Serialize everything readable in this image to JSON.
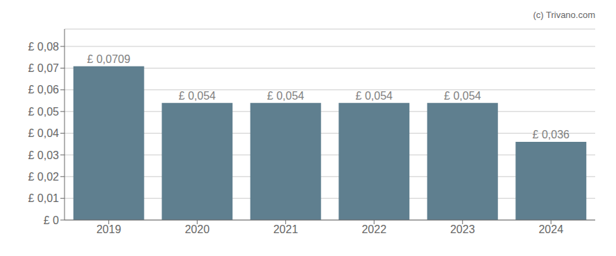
{
  "chart_data": {
    "type": "bar",
    "annotation": "(c) Trivano.com",
    "categories": [
      "2019",
      "2020",
      "2021",
      "2022",
      "2023",
      "2024"
    ],
    "values": [
      0.0709,
      0.054,
      0.054,
      0.054,
      0.054,
      0.036
    ],
    "value_labels": [
      "£ 0,0709",
      "£ 0,054",
      "£ 0,054",
      "£ 0,054",
      "£ 0,054",
      "£ 0,036"
    ],
    "data_labels": true,
    "color": "#5f7f8f",
    "ylim": [
      0,
      0.088
    ],
    "yticks": [
      {
        "value": 0,
        "label": "£ 0"
      },
      {
        "value": 0.01,
        "label": "£ 0,01"
      },
      {
        "value": 0.02,
        "label": "£ 0,02"
      },
      {
        "value": 0.03,
        "label": "£ 0,03"
      },
      {
        "value": 0.04,
        "label": "£ 0,04"
      },
      {
        "value": 0.05,
        "label": "£ 0,05"
      },
      {
        "value": 0.06,
        "label": "£ 0,06"
      },
      {
        "value": 0.07,
        "label": "£ 0,07"
      },
      {
        "value": 0.08,
        "label": "£ 0,08"
      }
    ],
    "grid": true
  }
}
